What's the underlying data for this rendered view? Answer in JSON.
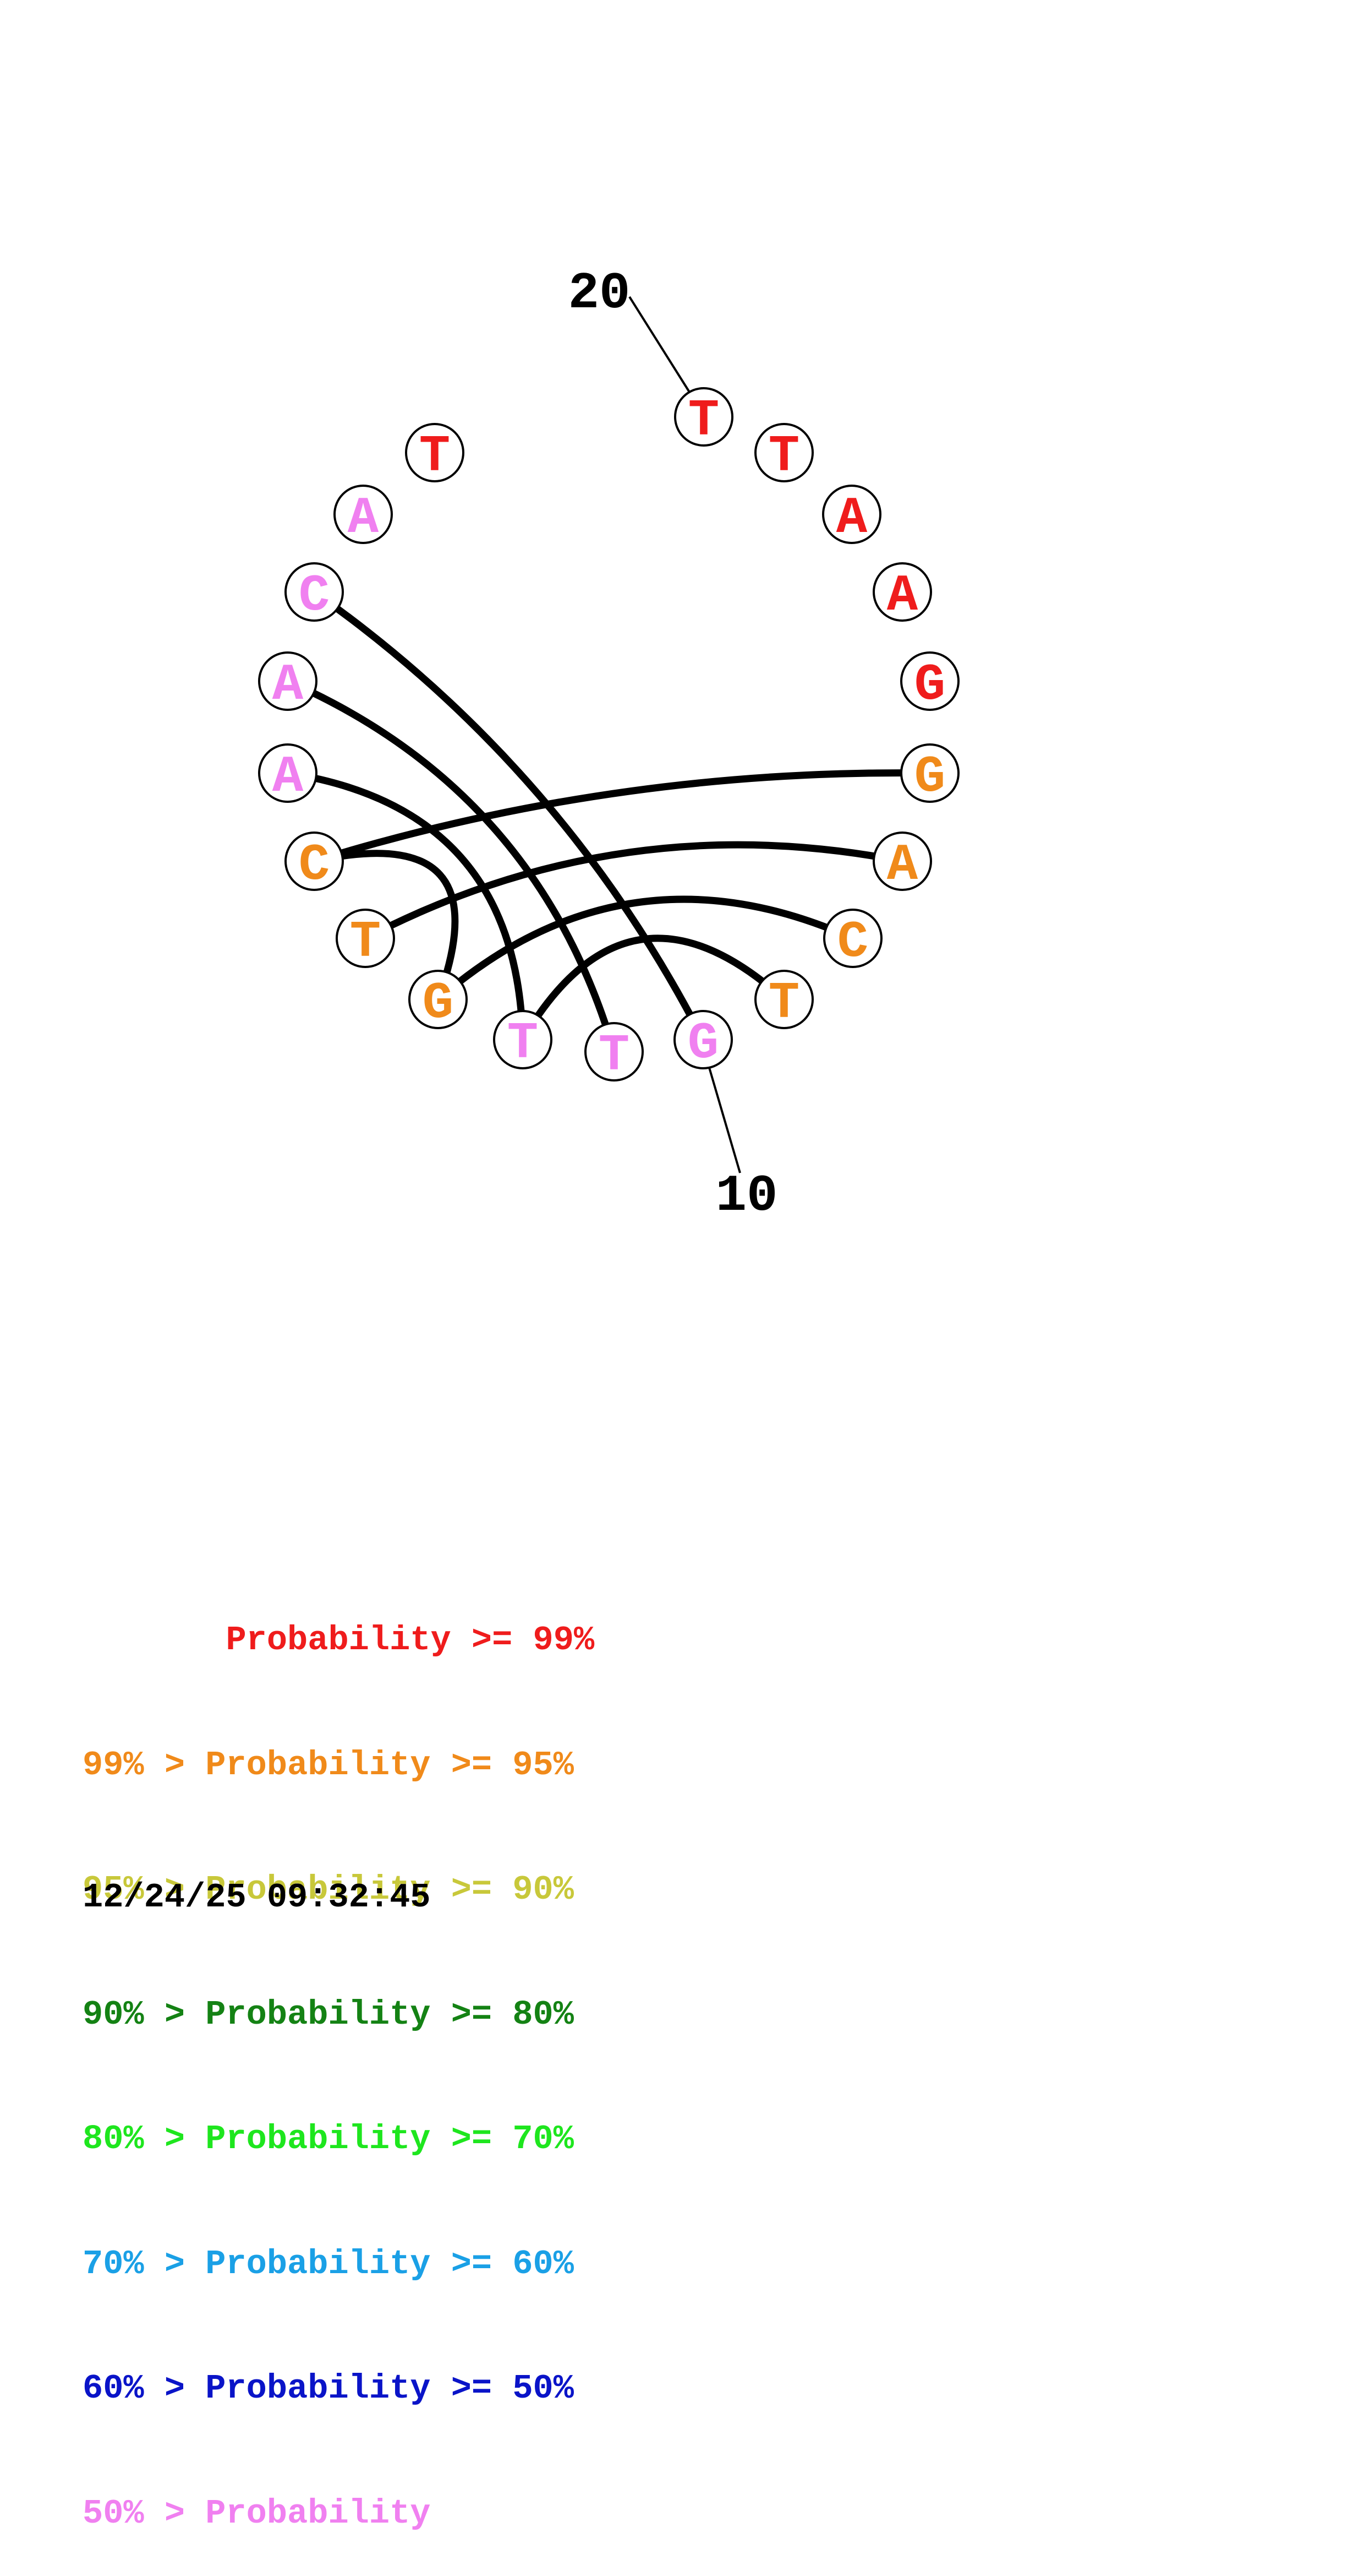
{
  "diagram": {
    "type": "rna-circle-plot",
    "sequence": [
      "T",
      "T",
      "A",
      "A",
      "G",
      "G",
      "A",
      "C",
      "T",
      "G",
      "T",
      "T",
      "G",
      "T",
      "C",
      "A",
      "A",
      "C",
      "A",
      "T"
    ],
    "probability_class": [
      0,
      0,
      0,
      0,
      0,
      1,
      1,
      1,
      1,
      7,
      7,
      7,
      1,
      1,
      1,
      7,
      7,
      7,
      7,
      0
    ],
    "pairs": [
      [
        6,
        15
      ],
      [
        7,
        14
      ],
      [
        8,
        13
      ],
      [
        9,
        12
      ],
      [
        10,
        18
      ],
      [
        11,
        17
      ],
      [
        12,
        16
      ],
      [
        13,
        15
      ]
    ],
    "position_labels": [
      {
        "position": 10,
        "text": "10"
      },
      {
        "position": 20,
        "text": "20"
      }
    ]
  },
  "legend": {
    "colors": [
      "#ef1c1c",
      "#f08a1a",
      "#c8c83a",
      "#148214",
      "#1ee61e",
      "#1aa0e6",
      "#0a14c8",
      "#f080f0"
    ],
    "rows": [
      "       Probability >= 99%",
      "99% > Probability >= 95%",
      "95% > Probability >= 90%",
      "90% > Probability >= 80%",
      "80% > Probability >= 70%",
      "70% > Probability >= 60%",
      "60% > Probability >= 50%",
      "50% > Probability"
    ]
  },
  "timestamp": "12/24/25 09:32:45"
}
